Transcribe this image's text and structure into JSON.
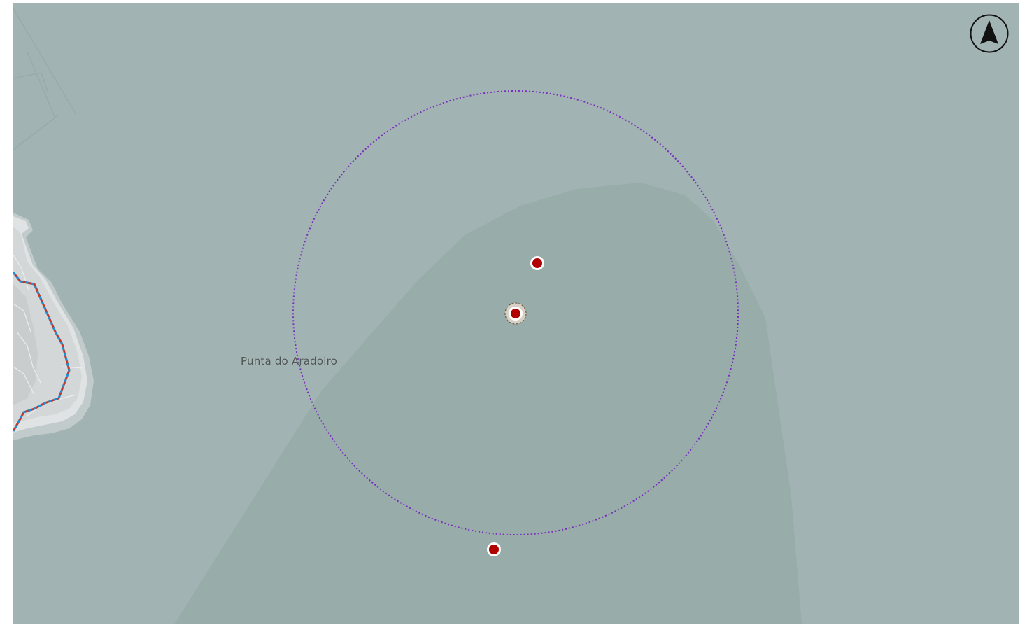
{
  "map": {
    "place_label": "Punta do Aradoiro",
    "colors": {
      "sea": "#a1b3b2",
      "shallow_zone": "#98acaa",
      "land": "#d3d7d8",
      "coast_rim": "#dfe3e3",
      "trail_dash_a": "#1f8fd6",
      "trail_dash_b": "#c0392b",
      "radius_circle": "#7b2cbf",
      "marker_fill": "#b00000",
      "marker_stroke": "#ffffff"
    },
    "markers": [
      {
        "name": "poi-marker-north",
        "type": "point"
      },
      {
        "name": "poi-marker-center",
        "type": "selected-point"
      },
      {
        "name": "poi-marker-south",
        "type": "point"
      }
    ],
    "search_radius": {
      "style": "dotted",
      "shape": "circle"
    },
    "compass": {
      "icon": "north-arrow-icon"
    }
  }
}
